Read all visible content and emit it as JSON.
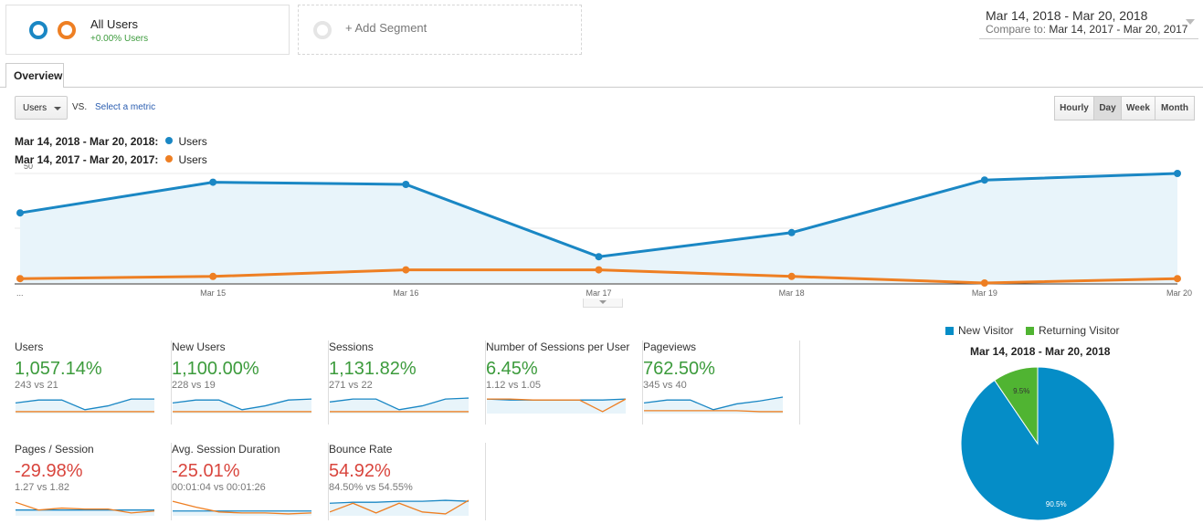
{
  "segments": {
    "active": {
      "title": "All Users",
      "subtitle": "+0.00% Users"
    },
    "add_label": "+ Add Segment"
  },
  "date_range": {
    "main": "Mar 14, 2018 - Mar 20, 2018",
    "compare_prefix": "Compare to:",
    "compare_range": "Mar 14, 2017 - Mar 20, 2017"
  },
  "tabs": {
    "overview": "Overview"
  },
  "metric_selector": {
    "selected": "Users",
    "vs": "VS.",
    "select_metric": "Select a metric"
  },
  "period_buttons": {
    "hourly": "Hourly",
    "day": "Day",
    "week": "Week",
    "month": "Month",
    "active": "Day"
  },
  "legend": {
    "current": {
      "range": "Mar 14, 2018 - Mar 20, 2018:",
      "metric": "Users"
    },
    "previous": {
      "range": "Mar 14, 2017 - Mar 20, 2017:",
      "metric": "Users"
    }
  },
  "colors": {
    "current": "#1a87c4",
    "previous": "#ee7f23",
    "positive": "#3c9b3c",
    "negative": "#d9453d",
    "new_visitor": "#058dc7",
    "returning_visitor": "#50b432"
  },
  "chart_data": {
    "type": "line",
    "categories": [
      "...",
      "Mar 15",
      "Mar 16",
      "Mar 17",
      "Mar 18",
      "Mar 19",
      "Mar 20"
    ],
    "series": [
      {
        "name": "Users",
        "period": "Mar 14, 2018 - Mar 20, 2018",
        "values": [
          32,
          46,
          45,
          12,
          23,
          47,
          50
        ]
      },
      {
        "name": "Users",
        "period": "Mar 14, 2017 - Mar 20, 2017",
        "values": [
          2,
          3,
          6,
          6,
          3,
          0,
          2
        ]
      }
    ],
    "yticks": [
      "50",
      "25"
    ],
    "ylim": [
      0,
      50
    ]
  },
  "scorecards": [
    {
      "title": "Users",
      "value": "1,057.14%",
      "compare": "243 vs 21",
      "trend": "up",
      "spark_current": [
        10,
        13,
        13,
        3,
        7,
        14,
        14
      ],
      "spark_previous": [
        1,
        1,
        1,
        1,
        1,
        1,
        1
      ]
    },
    {
      "title": "New Users",
      "value": "1,100.00%",
      "compare": "228 vs 19",
      "trend": "up",
      "spark_current": [
        10,
        13,
        13,
        3,
        7,
        13,
        14
      ],
      "spark_previous": [
        1,
        1,
        1,
        1,
        1,
        1,
        1
      ]
    },
    {
      "title": "Sessions",
      "value": "1,131.82%",
      "compare": "271 vs 22",
      "trend": "up",
      "spark_current": [
        11,
        14,
        14,
        3,
        7,
        14,
        15
      ],
      "spark_previous": [
        1,
        1,
        1,
        1,
        1,
        1,
        1
      ]
    },
    {
      "title": "Number of Sessions per User",
      "value": "6.45%",
      "compare": "1.12 vs 1.05",
      "trend": "up",
      "spark_current": [
        14,
        13,
        13,
        13,
        13,
        13,
        14
      ],
      "spark_previous": [
        14,
        14,
        13,
        13,
        13,
        1,
        14
      ]
    },
    {
      "title": "Pageviews",
      "value": "762.50%",
      "compare": "345 vs 40",
      "trend": "up",
      "spark_current": [
        10,
        13,
        13,
        3,
        9,
        12,
        16
      ],
      "spark_previous": [
        2,
        2,
        2,
        2,
        2,
        1,
        1
      ]
    },
    {
      "title": "Pages / Session",
      "value": "-29.98%",
      "compare": "1.27 vs 1.82",
      "trend": "down",
      "spark_current": [
        5,
        5,
        5,
        5,
        5,
        5,
        5
      ],
      "spark_previous": [
        13,
        5,
        7,
        6,
        6,
        2,
        4
      ]
    },
    {
      "title": "Avg. Session Duration",
      "value": "-25.01%",
      "compare": "00:01:04 vs 00:01:26",
      "trend": "down",
      "spark_current": [
        4,
        4,
        4,
        4,
        4,
        4,
        4
      ],
      "spark_previous": [
        14,
        8,
        3,
        2,
        2,
        1,
        2
      ]
    },
    {
      "title": "Bounce Rate",
      "value": "54.92%",
      "compare": "84.50% vs 54.55%",
      "trend": "down",
      "spark_current": [
        12,
        13,
        13,
        14,
        14,
        15,
        14
      ],
      "spark_previous": [
        3,
        12,
        2,
        12,
        3,
        1,
        15
      ]
    }
  ],
  "pie": {
    "legend": [
      "New Visitor",
      "Returning Visitor"
    ],
    "title": "Mar 14, 2018 - Mar 20, 2018",
    "chart_data": {
      "type": "pie",
      "labels": [
        "New Visitor",
        "Returning Visitor"
      ],
      "values": [
        90.5,
        9.5
      ],
      "value_labels": [
        "90.5%",
        "9.5%"
      ]
    }
  }
}
